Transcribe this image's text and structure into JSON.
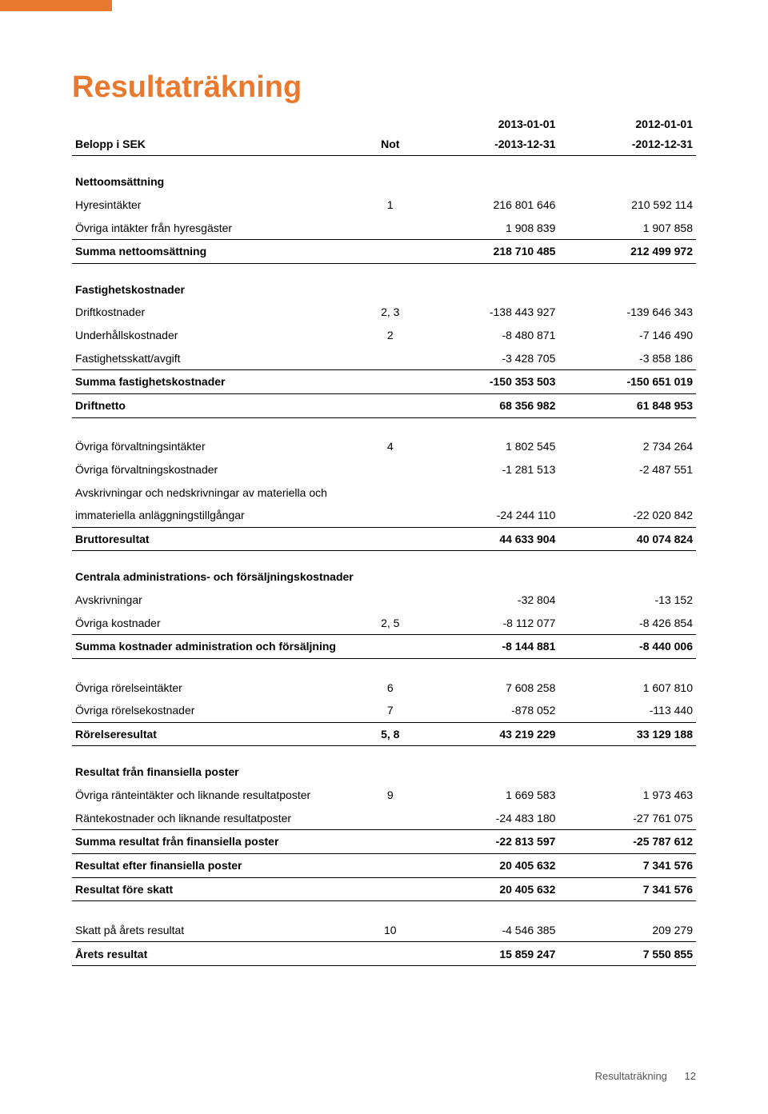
{
  "accent_color": "#e8792e",
  "title": "Resultaträkning",
  "footer_label": "Resultaträkning",
  "footer_page": "12",
  "header": {
    "col0": "Belopp i SEK",
    "not_label": "Not",
    "date1a": "2013-01-01",
    "date1b": "-2013-12-31",
    "date2a": "2012-01-01",
    "date2b": "-2012-12-31"
  },
  "sec1_title": "Nettoomsättning",
  "r1": {
    "l": "Hyresintäkter",
    "n": "1",
    "c1": "216 801 646",
    "c2": "210 592 114"
  },
  "r2": {
    "l": "Övriga intäkter från hyresgäster",
    "n": "",
    "c1": "1 908 839",
    "c2": "1 907 858"
  },
  "r3": {
    "l": "Summa nettoomsättning",
    "n": "",
    "c1": "218 710 485",
    "c2": "212 499 972"
  },
  "sec2_title": "Fastighetskostnader",
  "r4": {
    "l": "Driftkostnader",
    "n": "2, 3",
    "c1": "-138 443 927",
    "c2": "-139 646 343"
  },
  "r5": {
    "l": "Underhållskostnader",
    "n": "2",
    "c1": "-8 480 871",
    "c2": "-7 146 490"
  },
  "r6": {
    "l": "Fastighetsskatt/avgift",
    "n": "",
    "c1": "-3 428 705",
    "c2": "-3 858 186"
  },
  "r7": {
    "l": "Summa fastighetskostnader",
    "n": "",
    "c1": "-150 353 503",
    "c2": "-150 651 019"
  },
  "r8": {
    "l": "Driftnetto",
    "n": "",
    "c1": "68 356 982",
    "c2": "61 848 953"
  },
  "r9": {
    "l": "Övriga förvaltningsintäkter",
    "n": "4",
    "c1": "1 802 545",
    "c2": "2 734 264"
  },
  "r10": {
    "l": "Övriga förvaltningskostnader",
    "n": "",
    "c1": "-1 281 513",
    "c2": "-2 487 551"
  },
  "r11a": "Avskrivningar och nedskrivningar av materiella och",
  "r11": {
    "l": "immateriella anläggningstillgångar",
    "n": "",
    "c1": "-24 244 110",
    "c2": "-22 020 842"
  },
  "r12": {
    "l": "Bruttoresultat",
    "n": "",
    "c1": "44 633 904",
    "c2": "40 074 824"
  },
  "sec3_title": "Centrala administrations- och försäljningskostnader",
  "r13": {
    "l": "Avskrivningar",
    "n": "",
    "c1": "-32 804",
    "c2": "-13 152"
  },
  "r14": {
    "l": "Övriga kostnader",
    "n": "2, 5",
    "c1": "-8 112 077",
    "c2": "-8 426 854"
  },
  "r15": {
    "l": "Summa kostnader administration och försäljning",
    "n": "",
    "c1": "-8 144 881",
    "c2": "-8 440 006"
  },
  "r16": {
    "l": "Övriga rörelseintäkter",
    "n": "6",
    "c1": "7 608 258",
    "c2": "1 607 810"
  },
  "r17": {
    "l": "Övriga rörelsekostnader",
    "n": "7",
    "c1": "-878 052",
    "c2": "-113 440"
  },
  "r18": {
    "l": "Rörelseresultat",
    "n": "5, 8",
    "c1": "43 219 229",
    "c2": "33 129 188"
  },
  "sec4_title": "Resultat från finansiella poster",
  "r19": {
    "l": "Övriga ränteintäkter och liknande resultatposter",
    "n": "9",
    "c1": "1 669 583",
    "c2": "1 973 463"
  },
  "r20": {
    "l": "Räntekostnader och liknande resultatposter",
    "n": "",
    "c1": "-24 483 180",
    "c2": "-27 761 075"
  },
  "r21": {
    "l": "Summa resultat från finansiella poster",
    "n": "",
    "c1": "-22 813 597",
    "c2": "-25 787 612"
  },
  "r22": {
    "l": "Resultat efter finansiella poster",
    "n": "",
    "c1": "20 405 632",
    "c2": "7 341 576"
  },
  "r23": {
    "l": "Resultat före skatt",
    "n": "",
    "c1": "20 405 632",
    "c2": "7 341 576"
  },
  "r24": {
    "l": "Skatt på årets resultat",
    "n": "10",
    "c1": "-4 546 385",
    "c2": "209 279"
  },
  "r25": {
    "l": "Årets resultat",
    "n": "",
    "c1": "15 859 247",
    "c2": "7 550 855"
  }
}
